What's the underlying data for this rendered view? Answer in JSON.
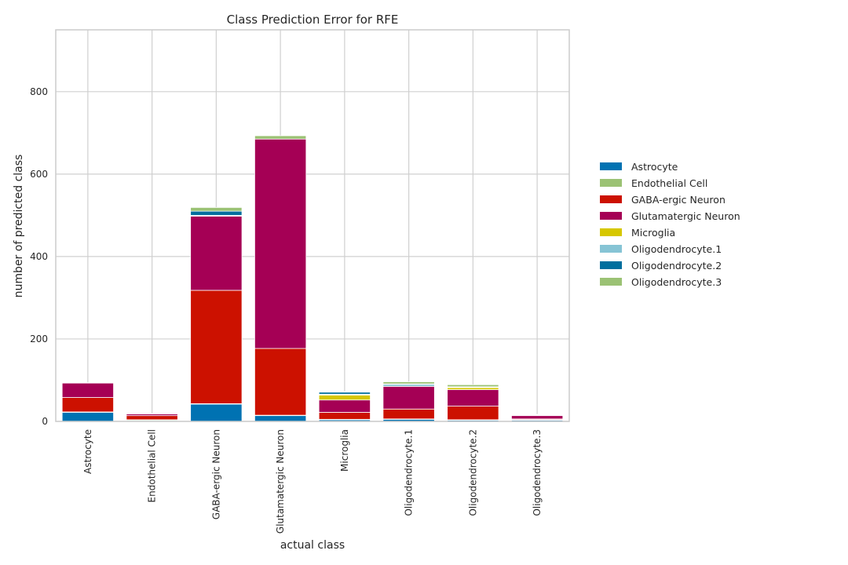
{
  "chart_data": {
    "type": "bar",
    "stacked": true,
    "title": "Class Prediction Error for RFE",
    "xlabel": "actual class",
    "ylabel": "number of predicted class",
    "ylim": [
      0,
      950
    ],
    "yticks": [
      0,
      200,
      400,
      600,
      800
    ],
    "grid": true,
    "legend_position": "right",
    "categories": [
      "Astrocyte",
      "Endothelial Cell",
      "GABA-ergic Neuron",
      "Glutamatergic Neuron",
      "Microglia",
      "Oligodendrocyte.1",
      "Oligodendrocyte.2",
      "Oligodendrocyte.3"
    ],
    "series": [
      {
        "name": "Astrocyte",
        "color": "#0072B2",
        "values": [
          22,
          2,
          42,
          14,
          4,
          5,
          3,
          3
        ]
      },
      {
        "name": "Endothelial Cell",
        "color": "#9BC274",
        "values": [
          1,
          2,
          1,
          1,
          1,
          1,
          1,
          1
        ]
      },
      {
        "name": "GABA-ergic Neuron",
        "color": "#CC1100",
        "values": [
          35,
          10,
          275,
          162,
          17,
          24,
          33,
          2
        ]
      },
      {
        "name": "Glutamatergic Neuron",
        "color": "#A50055",
        "values": [
          35,
          4,
          180,
          508,
          30,
          55,
          40,
          8
        ]
      },
      {
        "name": "Microglia",
        "color": "#D6C700",
        "values": [
          0,
          0,
          0,
          0,
          12,
          0,
          5,
          0
        ]
      },
      {
        "name": "Oligodendrocyte.1",
        "color": "#86C4D5",
        "values": [
          0,
          0,
          2,
          0,
          2,
          5,
          1,
          1
        ]
      },
      {
        "name": "Oligodendrocyte.2",
        "color": "#006F9E",
        "values": [
          0,
          0,
          10,
          0,
          5,
          1,
          1,
          1
        ]
      },
      {
        "name": "Oligodendrocyte.3",
        "color": "#9BC274",
        "values": [
          1,
          1,
          9,
          8,
          1,
          5,
          5,
          1
        ]
      }
    ]
  }
}
